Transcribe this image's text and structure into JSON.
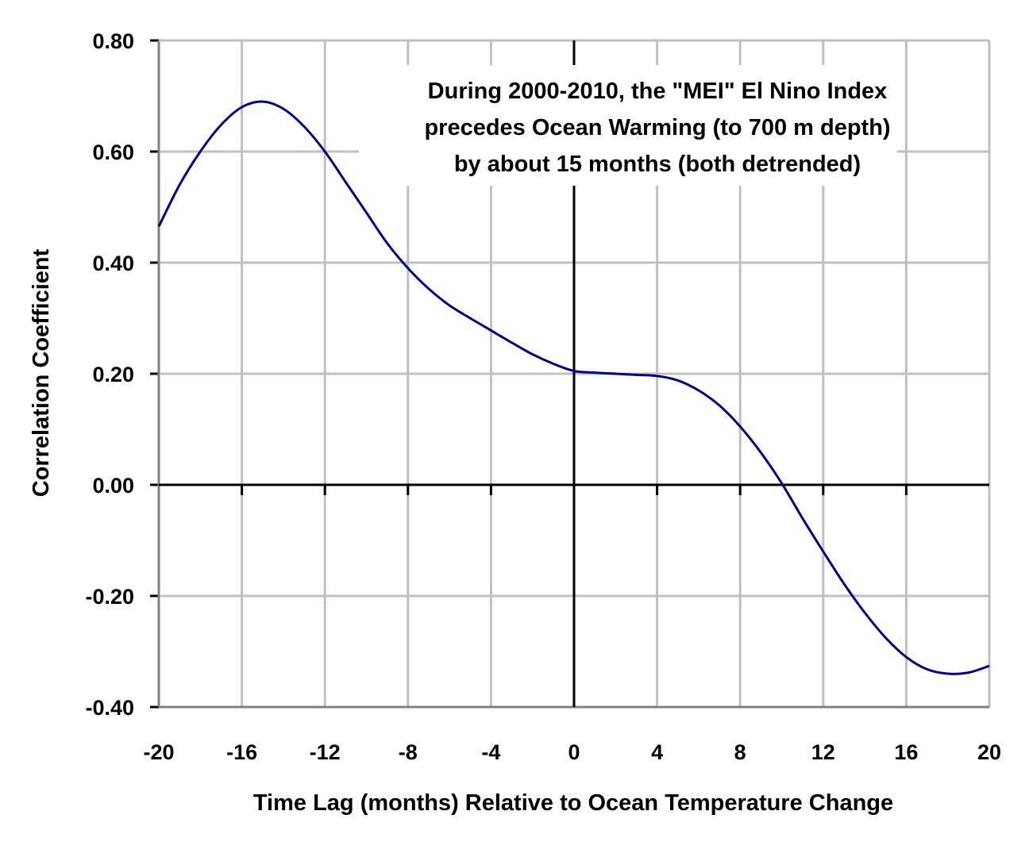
{
  "chart_data": {
    "type": "line",
    "title": "",
    "xlabel": "Time Lag (months) Relative to Ocean Temperature Change",
    "ylabel": "Correlation Coefficient",
    "xlim": [
      -20,
      20
    ],
    "ylim": [
      -0.4,
      0.8
    ],
    "x_ticks": [
      -20,
      -16,
      -12,
      -8,
      -4,
      0,
      4,
      8,
      12,
      16,
      20
    ],
    "x_tick_labels": [
      "-20",
      "-16",
      "-12",
      "-8",
      "-4",
      "0",
      "4",
      "8",
      "12",
      "16",
      "20"
    ],
    "y_ticks": [
      -0.4,
      -0.2,
      0.0,
      0.2,
      0.4,
      0.6,
      0.8
    ],
    "y_tick_labels": [
      "-0.40",
      "-0.20",
      "0.00",
      "0.20",
      "0.40",
      "0.60",
      "0.80"
    ],
    "grid": true,
    "annotation": [
      "During 2000-2010, the \"MEI\" El Nino Index",
      "precedes Ocean Warming (to 700 m depth)",
      "by about 15 months (both detrended)"
    ],
    "line_color": "#000080",
    "series": [
      {
        "x": [
          -20,
          -19,
          -18,
          -17,
          -16,
          -15,
          -14,
          -13,
          -12,
          -11,
          -10,
          -9,
          -8,
          -7,
          -6,
          -5,
          -4,
          -3,
          -2,
          -1,
          0,
          1,
          2,
          3,
          4,
          5,
          6,
          7,
          8,
          9,
          10,
          11,
          12,
          13,
          14,
          15,
          16,
          17,
          18,
          19,
          20
        ],
        "values": [
          0.465,
          0.54,
          0.6,
          0.648,
          0.68,
          0.69,
          0.677,
          0.645,
          0.6,
          0.545,
          0.49,
          0.435,
          0.39,
          0.353,
          0.323,
          0.3,
          0.278,
          0.256,
          0.235,
          0.218,
          0.205,
          0.202,
          0.2,
          0.198,
          0.196,
          0.188,
          0.17,
          0.143,
          0.105,
          0.058,
          0.003,
          -0.06,
          -0.12,
          -0.178,
          -0.23,
          -0.275,
          -0.31,
          -0.332,
          -0.34,
          -0.338,
          -0.326
        ]
      }
    ]
  }
}
